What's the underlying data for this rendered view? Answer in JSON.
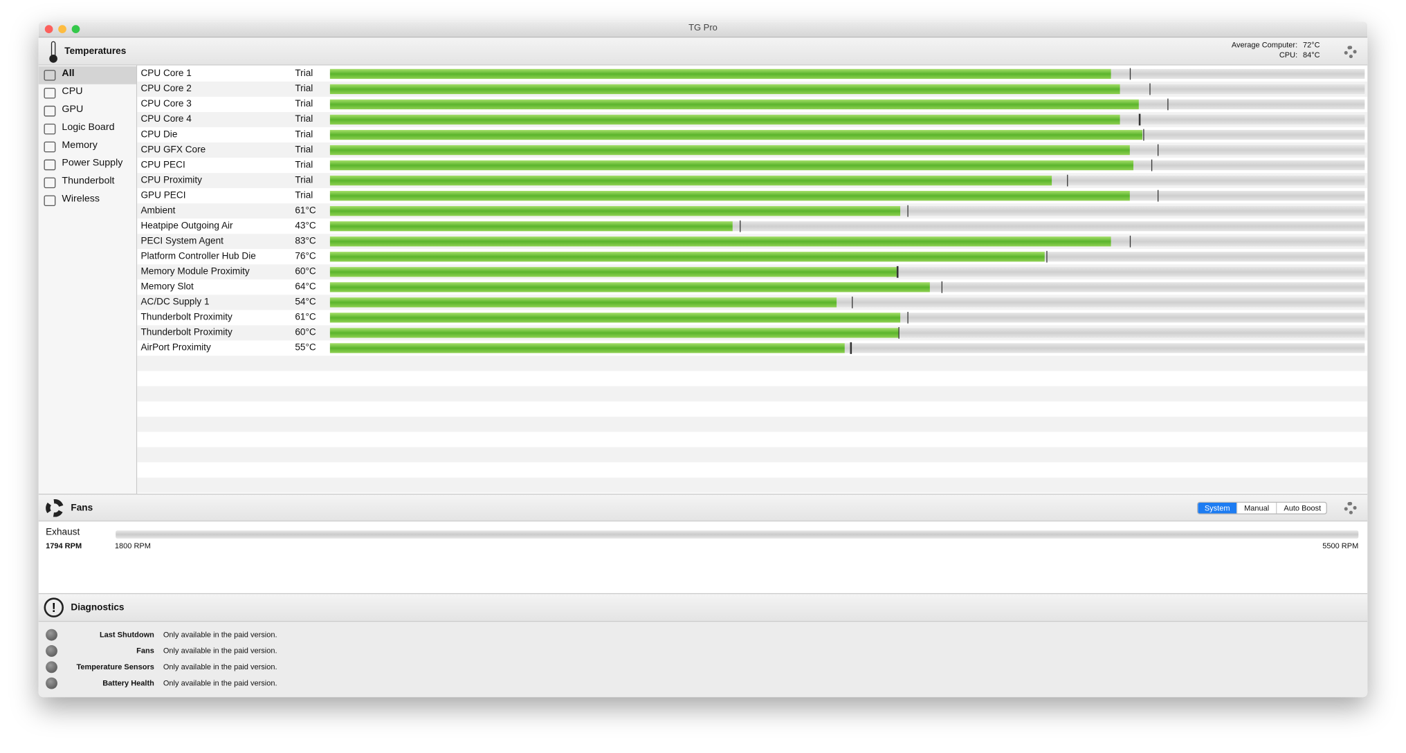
{
  "window": {
    "title": "TG Pro"
  },
  "temperatures": {
    "title": "Temperatures",
    "summary": [
      {
        "label": "Average Computer:",
        "value": "72°C"
      },
      {
        "label": "CPU:",
        "value": "84°C"
      }
    ],
    "sidebar": [
      "All",
      "CPU",
      "GPU",
      "Logic Board",
      "Memory",
      "Power Supply",
      "Thunderbolt",
      "Wireless"
    ],
    "sensors": [
      {
        "name": "CPU Core 1",
        "reading": "Trial",
        "level": 75.5,
        "peak": 77.3
      },
      {
        "name": "CPU Core 2",
        "reading": "Trial",
        "level": 76.3,
        "peak": 79.2
      },
      {
        "name": "CPU Core 3",
        "reading": "Trial",
        "level": 78.2,
        "peak": 80.9
      },
      {
        "name": "CPU Core 4",
        "reading": "Trial",
        "level": 76.3,
        "peak": 78.2
      },
      {
        "name": "CPU Die",
        "reading": "Trial",
        "level": 78.5,
        "peak": 78.6
      },
      {
        "name": "CPU GFX Core",
        "reading": "Trial",
        "level": 77.3,
        "peak": 80.0
      },
      {
        "name": "CPU PECI",
        "reading": "Trial",
        "level": 77.6,
        "peak": 79.4
      },
      {
        "name": "CPU Proximity",
        "reading": "Trial",
        "level": 69.8,
        "peak": 71.2
      },
      {
        "name": "GPU PECI",
        "reading": "Trial",
        "level": 77.3,
        "peak": 80.0
      },
      {
        "name": "Ambient",
        "reading": "61°C",
        "level": 55.1,
        "peak": 55.8
      },
      {
        "name": "Heatpipe Outgoing Air",
        "reading": "43°C",
        "level": 38.9,
        "peak": 39.6
      },
      {
        "name": "PECI System Agent",
        "reading": "83°C",
        "level": 75.5,
        "peak": 77.3
      },
      {
        "name": "Platform Controller Hub Die",
        "reading": "76°C",
        "level": 69.1,
        "peak": 69.2
      },
      {
        "name": "Memory Module Proximity",
        "reading": "60°C",
        "level": 54.8,
        "peak": 54.8
      },
      {
        "name": "Memory Slot",
        "reading": "64°C",
        "level": 58.0,
        "peak": 59.1
      },
      {
        "name": "AC/DC Supply 1",
        "reading": "54°C",
        "level": 49.0,
        "peak": 50.4
      },
      {
        "name": "Thunderbolt Proximity",
        "reading": "61°C",
        "level": 55.1,
        "peak": 55.8
      },
      {
        "name": "Thunderbolt Proximity",
        "reading": "60°C",
        "level": 54.9,
        "peak": 54.9
      },
      {
        "name": "AirPort Proximity",
        "reading": "55°C",
        "level": 49.7,
        "peak": 50.3
      }
    ]
  },
  "fans": {
    "title": "Fans",
    "modes": [
      "System",
      "Manual",
      "Auto Boost"
    ],
    "fan": {
      "name": "Exhaust",
      "rpm": "1794 RPM",
      "min": "1800 RPM",
      "max": "5500 RPM"
    }
  },
  "diagnostics": {
    "title": "Diagnostics",
    "items": [
      {
        "label": "Last Shutdown",
        "status": "Only available in the paid version."
      },
      {
        "label": "Fans",
        "status": "Only available in the paid version."
      },
      {
        "label": "Temperature Sensors",
        "status": "Only available in the paid version."
      },
      {
        "label": "Battery Health",
        "status": "Only available in the paid version."
      }
    ]
  }
}
